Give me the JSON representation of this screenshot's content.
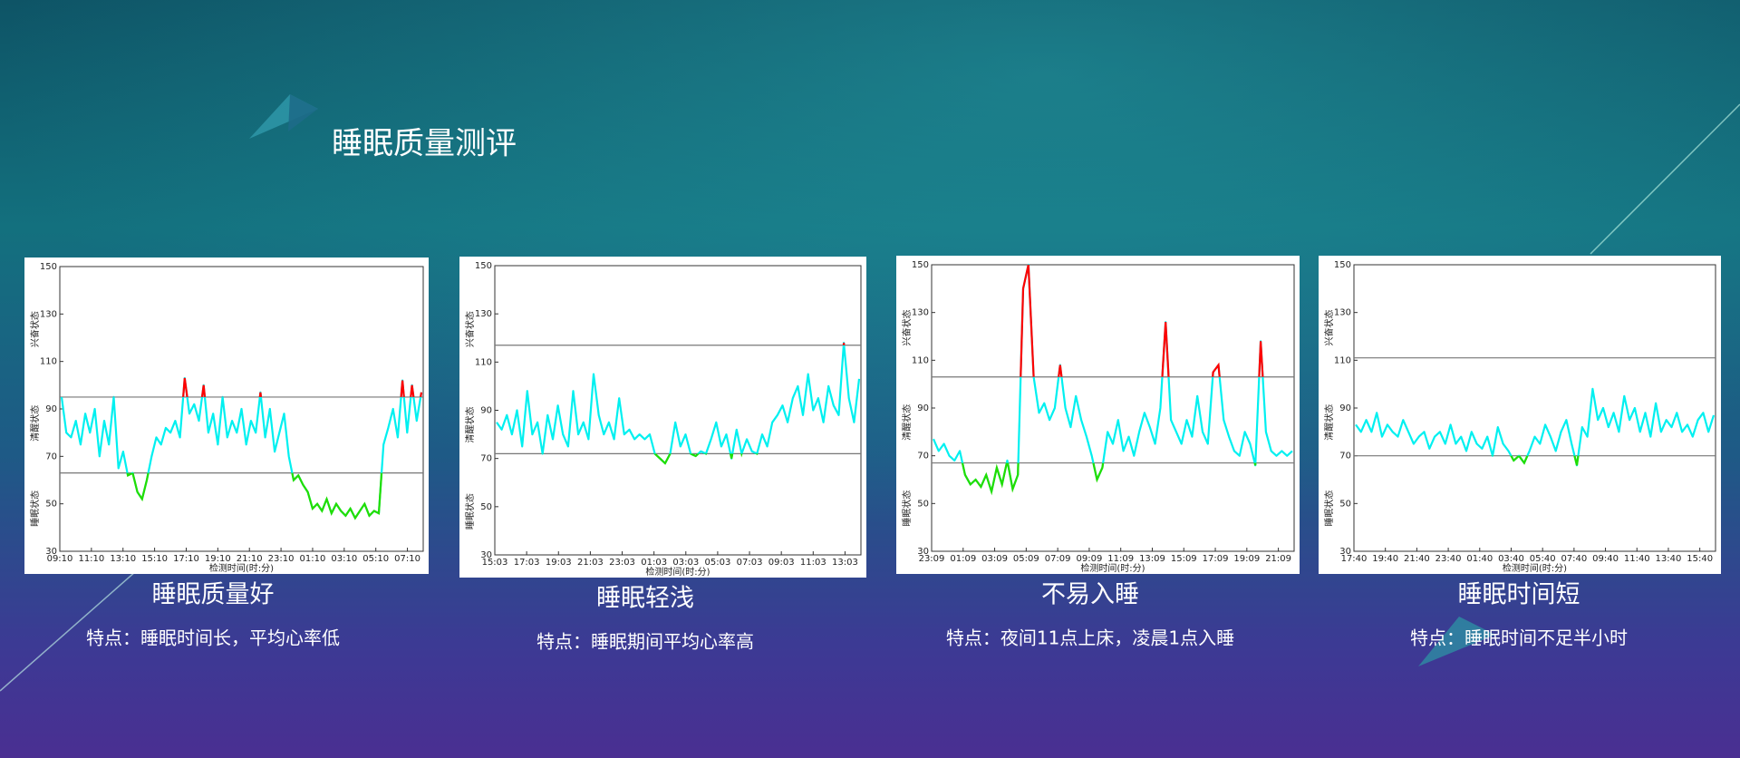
{
  "title": "睡眠质量测评",
  "chart_data": [
    {
      "type": "line",
      "title": "睡眠质量好",
      "subtitle": "特点：睡眠时间长，平均心率低",
      "xlabel": "检测时间(时:分)",
      "ylabels": [
        "兴奋状态",
        "清醒状态",
        "睡眠状态"
      ],
      "xticks": [
        "09:10",
        "11:10",
        "13:10",
        "15:10",
        "17:10",
        "19:10",
        "21:10",
        "23:10",
        "01:10",
        "03:10",
        "05:10",
        "07:10"
      ],
      "ylim": [
        30,
        150
      ],
      "yticks": [
        30,
        50,
        70,
        90,
        110,
        130,
        150
      ],
      "thresholds": [
        95,
        63
      ],
      "colors": [
        "#ff0000",
        "#00f0f0",
        "#22dd00"
      ],
      "series": [
        {
          "values": [
            95,
            80,
            78,
            85,
            75,
            88,
            80,
            90,
            70,
            85,
            75,
            95,
            65,
            72,
            62,
            63,
            55,
            52,
            60,
            70,
            78,
            75,
            82,
            80,
            85,
            78,
            103,
            88,
            92,
            85,
            100,
            80,
            88,
            75,
            95,
            78,
            85,
            80,
            90,
            75,
            85,
            80,
            97,
            78,
            90,
            72,
            80,
            88,
            70,
            60,
            62,
            58,
            55,
            48,
            50,
            47,
            52,
            46,
            50,
            47,
            45,
            48,
            44,
            47,
            50,
            45,
            47,
            46,
            75,
            82,
            90,
            78,
            102,
            80,
            100,
            85,
            97
          ]
        }
      ]
    },
    {
      "type": "line",
      "title": "睡眠轻浅",
      "subtitle": "特点：睡眠期间平均心率高",
      "xlabel": "检测时间(时:分)",
      "ylabels": [
        "兴奋状态",
        "清醒状态",
        "睡眠状态"
      ],
      "xticks": [
        "15:03",
        "17:03",
        "19:03",
        "21:03",
        "23:03",
        "01:03",
        "03:03",
        "05:03",
        "07:03",
        "09:03",
        "11:03",
        "13:03"
      ],
      "ylim": [
        30,
        150
      ],
      "yticks": [
        30,
        50,
        70,
        90,
        110,
        130,
        150
      ],
      "thresholds": [
        117,
        72
      ],
      "colors": [
        "#ff0000",
        "#00f0f0",
        "#22dd00"
      ],
      "series": [
        {
          "values": [
            85,
            82,
            88,
            80,
            90,
            75,
            98,
            80,
            85,
            72,
            88,
            78,
            92,
            80,
            75,
            98,
            80,
            85,
            78,
            105,
            88,
            80,
            85,
            78,
            95,
            80,
            82,
            78,
            80,
            78,
            80,
            72,
            70,
            68,
            72,
            85,
            75,
            80,
            72,
            71,
            73,
            72,
            78,
            85,
            75,
            80,
            70,
            82,
            72,
            78,
            73,
            72,
            80,
            75,
            85,
            88,
            92,
            85,
            95,
            100,
            88,
            105,
            90,
            95,
            85,
            100,
            92,
            88,
            118,
            95,
            85,
            103
          ]
        }
      ]
    },
    {
      "type": "line",
      "title": "不易入睡",
      "subtitle": "特点：夜间11点上床，凌晨1点入睡",
      "xlabel": "检测时间(时:分)",
      "ylabels": [
        "兴奋状态",
        "清醒状态",
        "睡眠状态"
      ],
      "xticks": [
        "23:09",
        "01:09",
        "03:09",
        "05:09",
        "07:09",
        "09:09",
        "11:09",
        "13:09",
        "15:09",
        "17:09",
        "19:09",
        "21:09"
      ],
      "ylim": [
        30,
        150
      ],
      "yticks": [
        30,
        50,
        70,
        90,
        110,
        130,
        150
      ],
      "thresholds": [
        103,
        67
      ],
      "colors": [
        "#ff0000",
        "#00f0f0",
        "#22dd00"
      ],
      "series": [
        {
          "values": [
            77,
            72,
            75,
            70,
            68,
            72,
            62,
            58,
            60,
            57,
            62,
            55,
            65,
            58,
            68,
            56,
            62,
            140,
            150,
            103,
            88,
            92,
            85,
            90,
            108,
            90,
            82,
            95,
            85,
            78,
            70,
            60,
            65,
            80,
            75,
            85,
            72,
            78,
            70,
            80,
            88,
            82,
            75,
            90,
            126,
            85,
            80,
            75,
            85,
            78,
            95,
            80,
            75,
            105,
            108,
            85,
            78,
            72,
            70,
            80,
            75,
            66,
            118,
            80,
            72,
            70,
            72,
            70,
            72
          ]
        }
      ]
    },
    {
      "type": "line",
      "title": "睡眠时间短",
      "subtitle": "特点：睡眠时间不足半小时",
      "xlabel": "检测时间(时:分)",
      "ylabels": [
        "兴奋状态",
        "清醒状态",
        "睡眠状态"
      ],
      "xticks": [
        "17:40",
        "19:40",
        "21:40",
        "23:40",
        "01:40",
        "03:40",
        "05:40",
        "07:40",
        "09:40",
        "11:40",
        "13:40",
        "15:40"
      ],
      "ylim": [
        30,
        150
      ],
      "yticks": [
        30,
        50,
        70,
        90,
        110,
        130,
        150
      ],
      "thresholds": [
        111,
        70
      ],
      "colors": [
        "#ff0000",
        "#00f0f0",
        "#22dd00"
      ],
      "series": [
        {
          "values": [
            83,
            80,
            85,
            80,
            88,
            78,
            83,
            80,
            78,
            85,
            80,
            75,
            78,
            80,
            73,
            78,
            80,
            75,
            83,
            75,
            78,
            72,
            80,
            75,
            73,
            78,
            70,
            82,
            75,
            72,
            68,
            70,
            67,
            72,
            78,
            75,
            83,
            78,
            72,
            80,
            85,
            75,
            66,
            82,
            78,
            98,
            85,
            90,
            82,
            88,
            80,
            95,
            85,
            90,
            80,
            88,
            78,
            92,
            80,
            85,
            82,
            88,
            80,
            83,
            78,
            85,
            88,
            80,
            87
          ]
        }
      ]
    }
  ]
}
